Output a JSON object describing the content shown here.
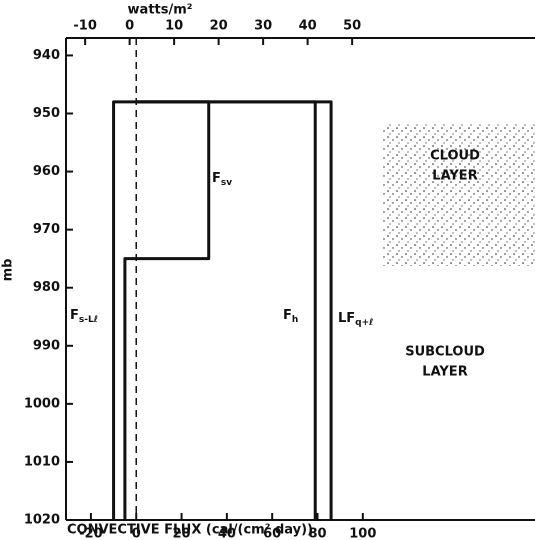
{
  "chart_data": {
    "type": "line",
    "xlabel": "CONVECTIVE FLUX  (cal/(cm² day))",
    "x2label": "watts/m²",
    "ylabel": "mb",
    "xlim": [
      -31,
      176
    ],
    "xticks": [
      -20,
      0,
      20,
      40,
      60,
      80,
      100
    ],
    "x2lim": [
      -14.3,
      91.1
    ],
    "x2ticks": [
      -10,
      0,
      10,
      20,
      30,
      40,
      50
    ],
    "ylim": [
      937,
      1020
    ],
    "yticks": [
      940,
      950,
      960,
      970,
      980,
      990,
      1000,
      1010,
      1020
    ],
    "y_inverted": true,
    "color": "#111111",
    "zero_line": 0,
    "series": [
      {
        "name": "F",
        "sub": "s-Lℓ",
        "x": [
          0,
          -10,
          -10
        ],
        "y": [
          948,
          948,
          1020
        ]
      },
      {
        "name": "F",
        "sub": "sv",
        "x": [
          0,
          32,
          32,
          -5,
          -5
        ],
        "y": [
          948,
          948,
          975,
          975,
          1020
        ]
      },
      {
        "name": "F",
        "sub": "h",
        "x": [
          0,
          79,
          79
        ],
        "y": [
          948,
          948,
          1020
        ]
      },
      {
        "name": "LF",
        "sub": "q+ℓ",
        "x": [
          0,
          86,
          86
        ],
        "y": [
          948,
          948,
          1020
        ]
      }
    ],
    "annotations": [
      {
        "text": "CLOUD",
        "text2": "LAYER"
      },
      {
        "text": "SUBCLOUD",
        "text2": "LAYER"
      }
    ]
  }
}
